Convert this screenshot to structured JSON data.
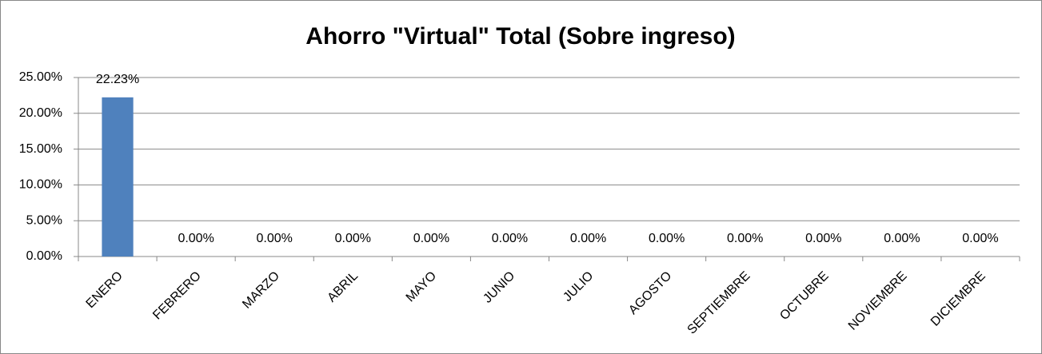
{
  "chart_data": {
    "type": "bar",
    "title": "Ahorro \"Virtual\" Total (Sobre ingreso)",
    "categories": [
      "ENERO",
      "FEBRERO",
      "MARZO",
      "ABRIL",
      "MAYO",
      "JUNIO",
      "JULIO",
      "AGOSTO",
      "SEPTIEMBRE",
      "OCTUBRE",
      "NOVIEMBRE",
      "DICIEMBRE"
    ],
    "values": [
      22.23,
      0,
      0,
      0,
      0,
      0,
      0,
      0,
      0,
      0,
      0,
      0
    ],
    "value_labels": [
      "22.23%",
      "0.00%",
      "0.00%",
      "0.00%",
      "0.00%",
      "0.00%",
      "0.00%",
      "0.00%",
      "0.00%",
      "0.00%",
      "0.00%",
      "0.00%"
    ],
    "color": "#4f81bd",
    "ylim": [
      0,
      25
    ],
    "yticks": [
      {
        "value": 0,
        "label": "0.00%"
      },
      {
        "value": 5,
        "label": "5.00%"
      },
      {
        "value": 10,
        "label": "10.00%"
      },
      {
        "value": 15,
        "label": "15.00%"
      },
      {
        "value": 20,
        "label": "20.00%"
      },
      {
        "value": 25,
        "label": "25.00%"
      }
    ],
    "grid": true
  }
}
